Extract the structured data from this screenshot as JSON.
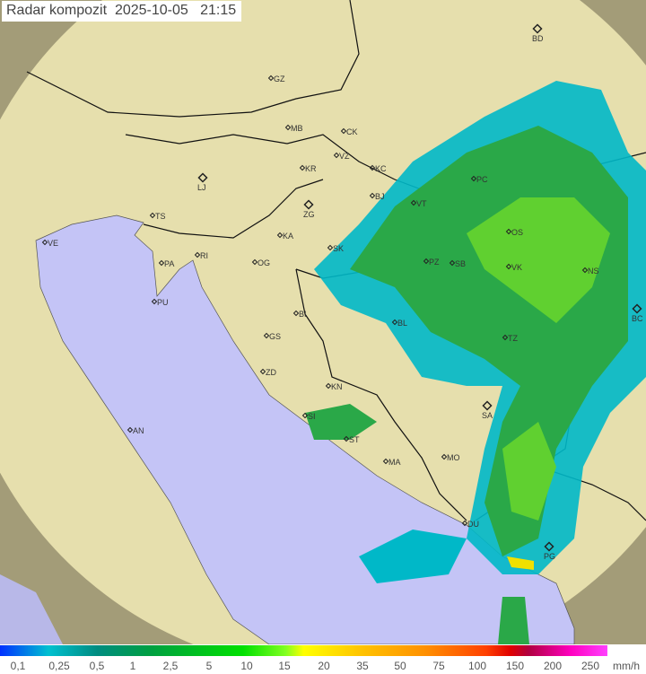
{
  "title": "Radar kompozit  2025-10-05   21:15",
  "legend": {
    "ticks": [
      "0,1",
      "0,25",
      "0,5",
      "1",
      "2,5",
      "5",
      "10",
      "15",
      "20",
      "35",
      "50",
      "75",
      "100",
      "150",
      "200",
      "250"
    ],
    "unit": "mm/h"
  },
  "cities": [
    "GZ",
    "BD",
    "MB",
    "CK",
    "VZ",
    "KR",
    "KC",
    "LJ",
    "PC",
    "VT",
    "ZG",
    "BJ",
    "TS",
    "VE",
    "RI",
    "KA",
    "SK",
    "OS",
    "NS",
    "PA",
    "OG",
    "PZ",
    "SB",
    "VK",
    "PU",
    "BC",
    "BL",
    "BI",
    "GS",
    "TZ",
    "ZD",
    "KN",
    "SA",
    "SI",
    "ST",
    "AN",
    "MA",
    "MO",
    "DU",
    "PG"
  ],
  "colors": {
    "sea": "#c4c4f6",
    "land": "#e8e0b0",
    "outside": "#9a9470",
    "echo_light": "#00b8c8",
    "echo_mid": "#20b040",
    "echo_heavy": "#80e020"
  }
}
